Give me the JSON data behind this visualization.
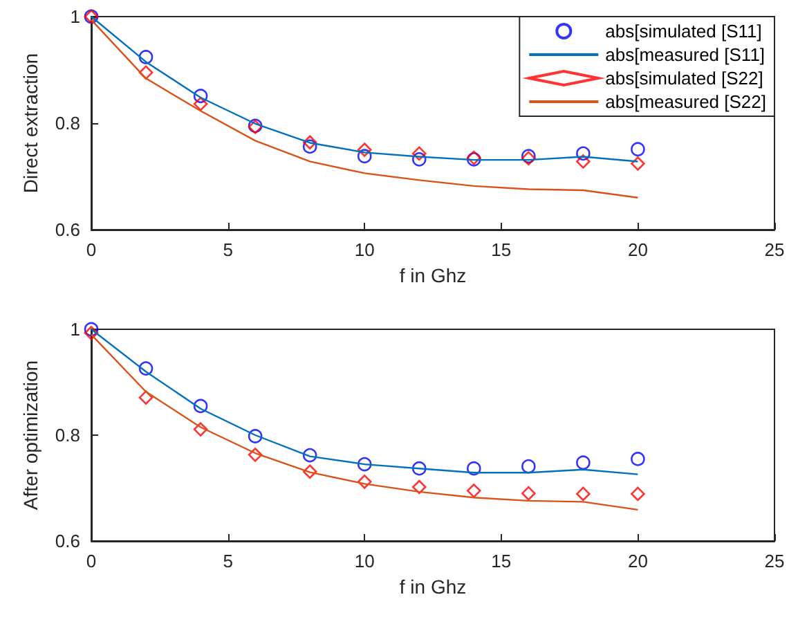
{
  "chart_data": [
    {
      "type": "line",
      "xlabel": "f in Ghz",
      "ylabel": "Direct extraction",
      "xlim": [
        0,
        25
      ],
      "xticks": [
        0,
        5,
        10,
        15,
        20,
        25
      ],
      "ylim": [
        0.6,
        1
      ],
      "yticks": [
        0.6,
        0.8,
        1
      ],
      "grid": false,
      "legend": "top right",
      "x": [
        0,
        2,
        4,
        6,
        8,
        10,
        12,
        14,
        16,
        18,
        20
      ],
      "series": [
        {
          "name": "abs[simulated [S11]",
          "type": "scatter",
          "marker": "circle",
          "color": "#0000ff",
          "values": [
            1.0,
            0.924,
            0.851,
            0.795,
            0.756,
            0.738,
            0.732,
            0.732,
            0.738,
            0.743,
            0.751
          ]
        },
        {
          "name": "abs[measured [S11]",
          "marker": "none",
          "color": "#0072bd",
          "values": [
            1.0,
            0.915,
            0.848,
            0.799,
            0.763,
            0.745,
            0.737,
            0.731,
            0.731,
            0.737,
            0.728
          ]
        },
        {
          "name": "abs[simulated [S22]",
          "type": "scatter",
          "marker": "diamond",
          "color": "#ff0000",
          "values": [
            1.0,
            0.895,
            0.836,
            0.793,
            0.764,
            0.75,
            0.743,
            0.735,
            0.734,
            0.728,
            0.724
          ]
        },
        {
          "name": "abs[measured [S22]",
          "marker": "none",
          "color": "#d95319",
          "values": [
            0.994,
            0.884,
            0.823,
            0.767,
            0.728,
            0.706,
            0.693,
            0.682,
            0.676,
            0.674,
            0.66
          ]
        }
      ]
    },
    {
      "type": "line",
      "xlabel": "f in Ghz",
      "ylabel": "After optimization",
      "xlim": [
        0,
        25
      ],
      "xticks": [
        0,
        5,
        10,
        15,
        20,
        25
      ],
      "ylim": [
        0.6,
        1
      ],
      "yticks": [
        0.6,
        0.8,
        1
      ],
      "grid": false,
      "legend": false,
      "x": [
        0,
        2,
        4,
        6,
        8,
        10,
        12,
        14,
        16,
        18,
        20
      ],
      "series": [
        {
          "type": "scatter",
          "marker": "circle",
          "color": "#0000ff",
          "values": [
            1.0,
            0.926,
            0.855,
            0.798,
            0.762,
            0.745,
            0.737,
            0.737,
            0.741,
            0.748,
            0.755
          ]
        },
        {
          "marker": "none",
          "color": "#0072bd",
          "values": [
            1.0,
            0.92,
            0.85,
            0.8,
            0.76,
            0.745,
            0.737,
            0.729,
            0.729,
            0.735,
            0.726
          ]
        },
        {
          "type": "scatter",
          "marker": "diamond",
          "color": "#ff0000",
          "values": [
            0.993,
            0.871,
            0.811,
            0.763,
            0.731,
            0.712,
            0.702,
            0.695,
            0.69,
            0.689,
            0.689
          ]
        },
        {
          "marker": "none",
          "color": "#d95319",
          "values": [
            0.99,
            0.882,
            0.815,
            0.766,
            0.73,
            0.708,
            0.693,
            0.682,
            0.676,
            0.674,
            0.659
          ]
        }
      ]
    }
  ]
}
